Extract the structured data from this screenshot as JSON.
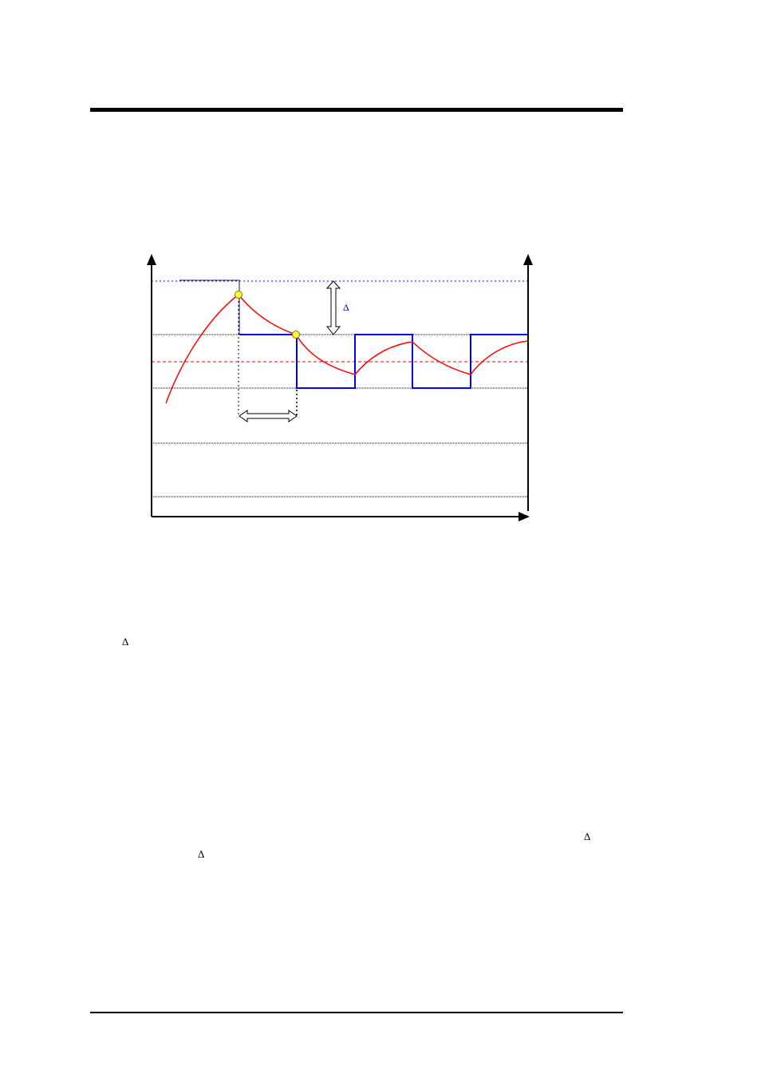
{
  "delta_symbol": "Δ",
  "colors": {
    "rule": "#000000",
    "axis": "#000000",
    "gridline": "#000000",
    "upper_limit_line": "#0000ff",
    "setpoint_line": "#ff0000",
    "output_signal": "#0000ff",
    "measured_curve": "#ff0000",
    "marker_fill": "#ffff33",
    "delta_label": "#0000cc"
  },
  "icons": {
    "left_axis": "arrow-up-icon",
    "right_axis": "arrow-up-icon",
    "time_axis": "arrow-right-icon",
    "delta_span": "double-arrow-vertical-icon",
    "time_span": "double-arrow-horizontal-icon"
  }
}
